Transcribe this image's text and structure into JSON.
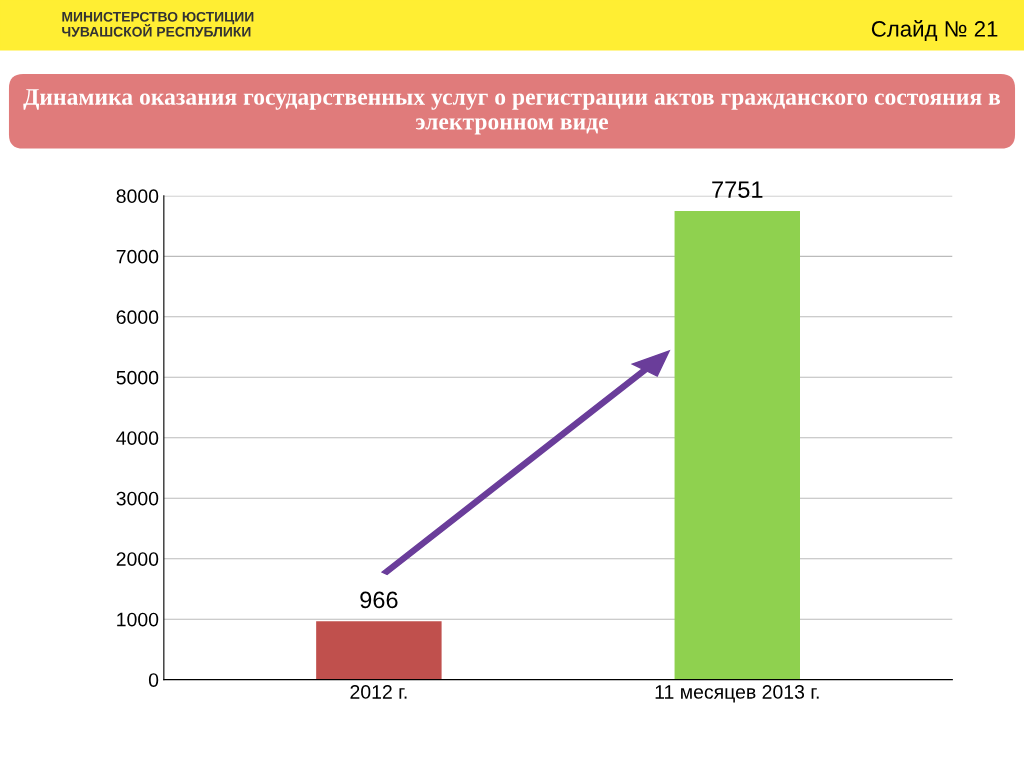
{
  "chart_data": {
    "type": "bar",
    "title": "Динамика оказания государственных услуг о регистрации актов гражданского состояния в электронном виде",
    "annotations": [
      "МИНИСТЕРСТВО ЮСТИЦИИ\nЧУВАШСКОЙ РЕСПУБЛИКИ",
      "Слайд № 21"
    ],
    "categories": [
      "2012 г.",
      "11 месяцев 2013 г."
    ],
    "values": [
      966,
      7751
    ],
    "colors": [
      "#c0504d",
      "#8fd14f"
    ],
    "ylim": [
      0,
      8000
    ],
    "yticks": [
      0,
      1000,
      2000,
      3000,
      4000,
      5000,
      6000,
      7000,
      8000
    ],
    "grid": "y",
    "data_labels": true
  }
}
